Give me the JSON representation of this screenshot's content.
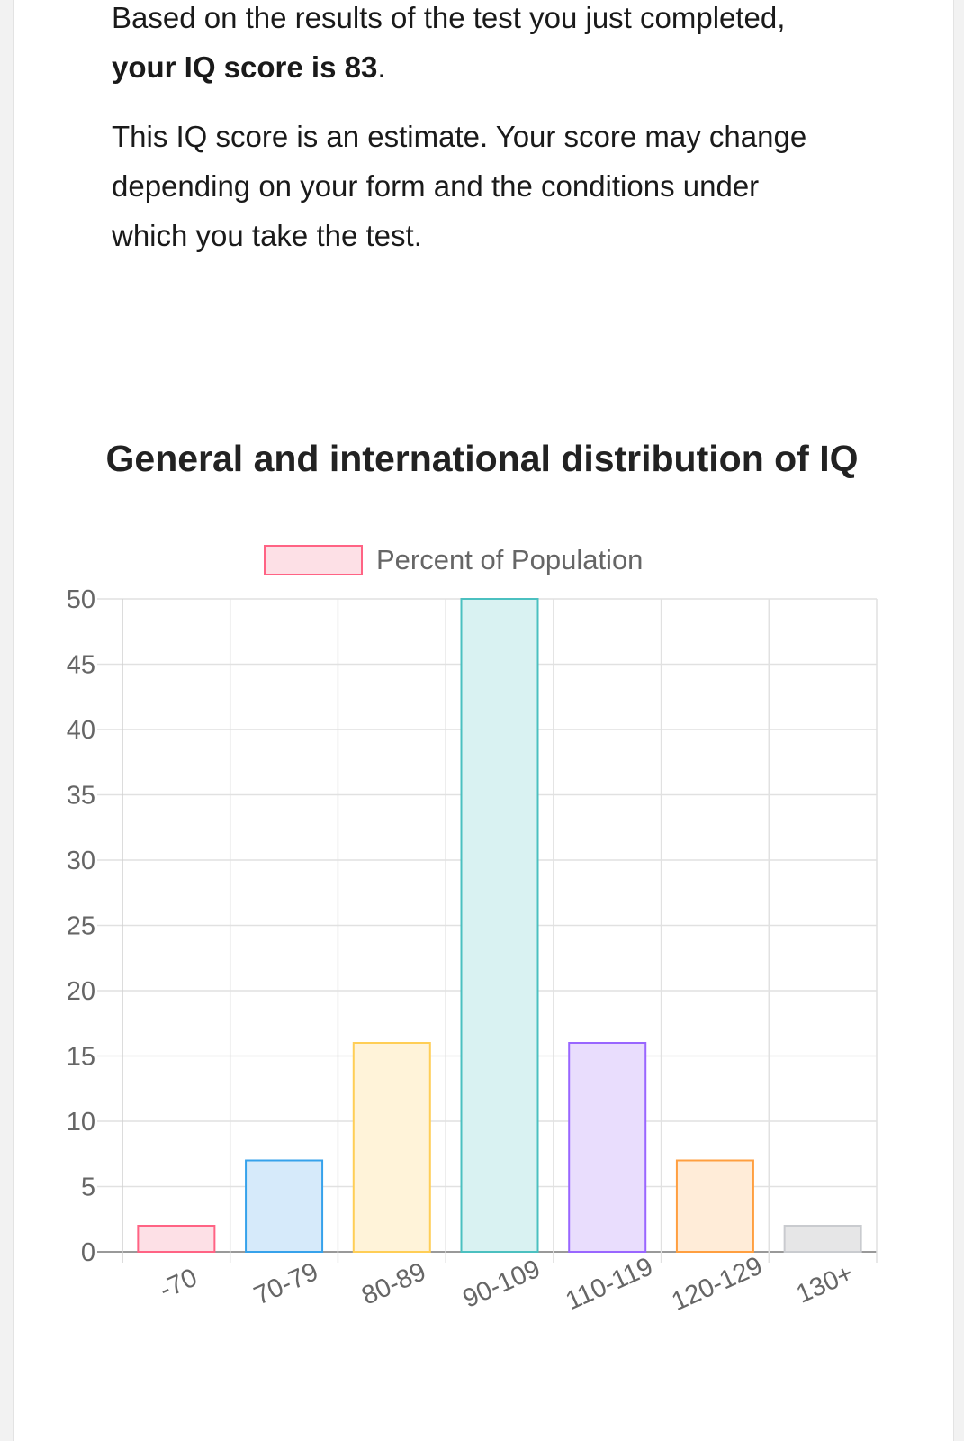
{
  "intro": {
    "line1_prefix": "Based on the results of the test you just completed, ",
    "line1_bold": "your IQ score is 83",
    "line1_suffix": ".",
    "paragraph2": "This IQ score is an estimate. Your score may change depending on your form and the conditions under which you take the test."
  },
  "chart_data": {
    "type": "bar",
    "title": "General and international distribution of IQ",
    "categories": [
      "-70",
      "70-79",
      "80-89",
      "90-109",
      "110-119",
      "120-129",
      "130+"
    ],
    "series": [
      {
        "name": "Percent of Population",
        "values": [
          2,
          7,
          16,
          50,
          16,
          7,
          2
        ]
      }
    ],
    "ylim": [
      0,
      50
    ],
    "yticks": [
      0,
      5,
      10,
      15,
      20,
      25,
      30,
      35,
      40,
      45,
      50
    ],
    "legend_position": "top",
    "grid": true,
    "colors": {
      "fill": [
        "#fde0e6",
        "#d6eafa",
        "#fff3d9",
        "#d9f2f2",
        "#e9ddfd",
        "#ffecd8",
        "#e6e6e7"
      ],
      "stroke": [
        "#ff6384",
        "#36a2eb",
        "#ffce56",
        "#4bc0c0",
        "#9966ff",
        "#ff9f40",
        "#c9cbcf"
      ],
      "legend_fill": "#fde0e6",
      "legend_stroke": "#ff6384",
      "grid": "#e1e1e1",
      "axis": "#999999",
      "tick_text": "#666666"
    }
  }
}
